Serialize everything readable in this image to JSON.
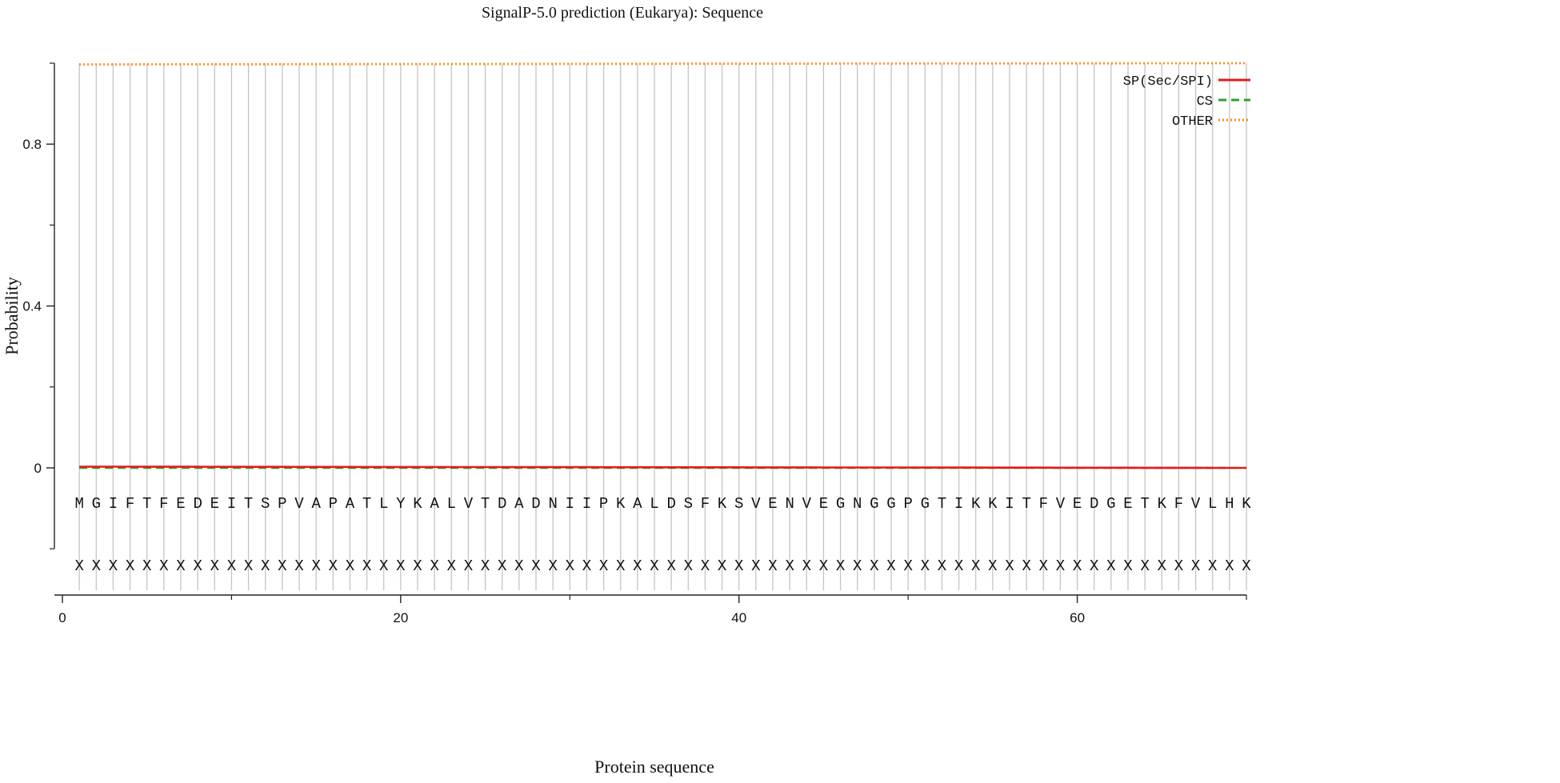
{
  "chart_data": {
    "type": "line",
    "title": "SignalP-5.0 prediction (Eukarya):  Sequence",
    "xlabel": "Protein sequence",
    "ylabel": "Probability",
    "xlim": [
      0,
      70
    ],
    "ylim": [
      -0.25,
      1.0
    ],
    "x_ticks": [
      0,
      20,
      40,
      60
    ],
    "x_minor_ticks": [
      10,
      30,
      50,
      70
    ],
    "y_ticks": [
      0,
      0.4,
      0.8
    ],
    "y_tick_labels": [
      "0",
      "0.4",
      "0.8"
    ],
    "y_minor_ticks": [
      0.2,
      0.6,
      1.0
    ],
    "grid": "vertical line at each residue position",
    "legend_position": "top-right",
    "residues": [
      "M",
      "G",
      "I",
      "F",
      "T",
      "F",
      "E",
      "D",
      "E",
      "I",
      "T",
      "S",
      "P",
      "V",
      "A",
      "P",
      "A",
      "T",
      "L",
      "Y",
      "K",
      "A",
      "L",
      "V",
      "T",
      "D",
      "A",
      "D",
      "N",
      "I",
      "I",
      "P",
      "K",
      "A",
      "L",
      "D",
      "S",
      "F",
      "K",
      "S",
      "V",
      "E",
      "N",
      "V",
      "E",
      "G",
      "N",
      "G",
      "G",
      "P",
      "G",
      "T",
      "I",
      "K",
      "K",
      "I",
      "T",
      "F",
      "V",
      "E",
      "D",
      "G",
      "E",
      "T",
      "K",
      "F",
      "V",
      "L",
      "H",
      "K"
    ],
    "annotation": [
      "X",
      "X",
      "X",
      "X",
      "X",
      "X",
      "X",
      "X",
      "X",
      "X",
      "X",
      "X",
      "X",
      "X",
      "X",
      "X",
      "X",
      "X",
      "X",
      "X",
      "X",
      "X",
      "X",
      "X",
      "X",
      "X",
      "X",
      "X",
      "X",
      "X",
      "X",
      "X",
      "X",
      "X",
      "X",
      "X",
      "X",
      "X",
      "X",
      "X",
      "X",
      "X",
      "X",
      "X",
      "X",
      "X",
      "X",
      "X",
      "X",
      "X",
      "X",
      "X",
      "X",
      "X",
      "X",
      "X",
      "X",
      "X",
      "X",
      "X",
      "X",
      "X",
      "X",
      "X",
      "X",
      "X",
      "X",
      "X",
      "X",
      "X"
    ],
    "series": [
      {
        "name": "SP(Sec/SPI)",
        "color": "#e41a1c",
        "style": "solid",
        "x_range": [
          1,
          70
        ],
        "values_start": 0.003,
        "values_end": 0.0
      },
      {
        "name": "CS",
        "color": "#2ca02c",
        "style": "dashed",
        "x_range": [
          1,
          70
        ],
        "values_start": 0.0,
        "values_end": 0.0
      },
      {
        "name": "OTHER",
        "color": "#ff8c1a",
        "style": "dotted",
        "x_range": [
          1,
          70
        ],
        "values_start": 0.997,
        "values_end": 1.0
      }
    ]
  }
}
